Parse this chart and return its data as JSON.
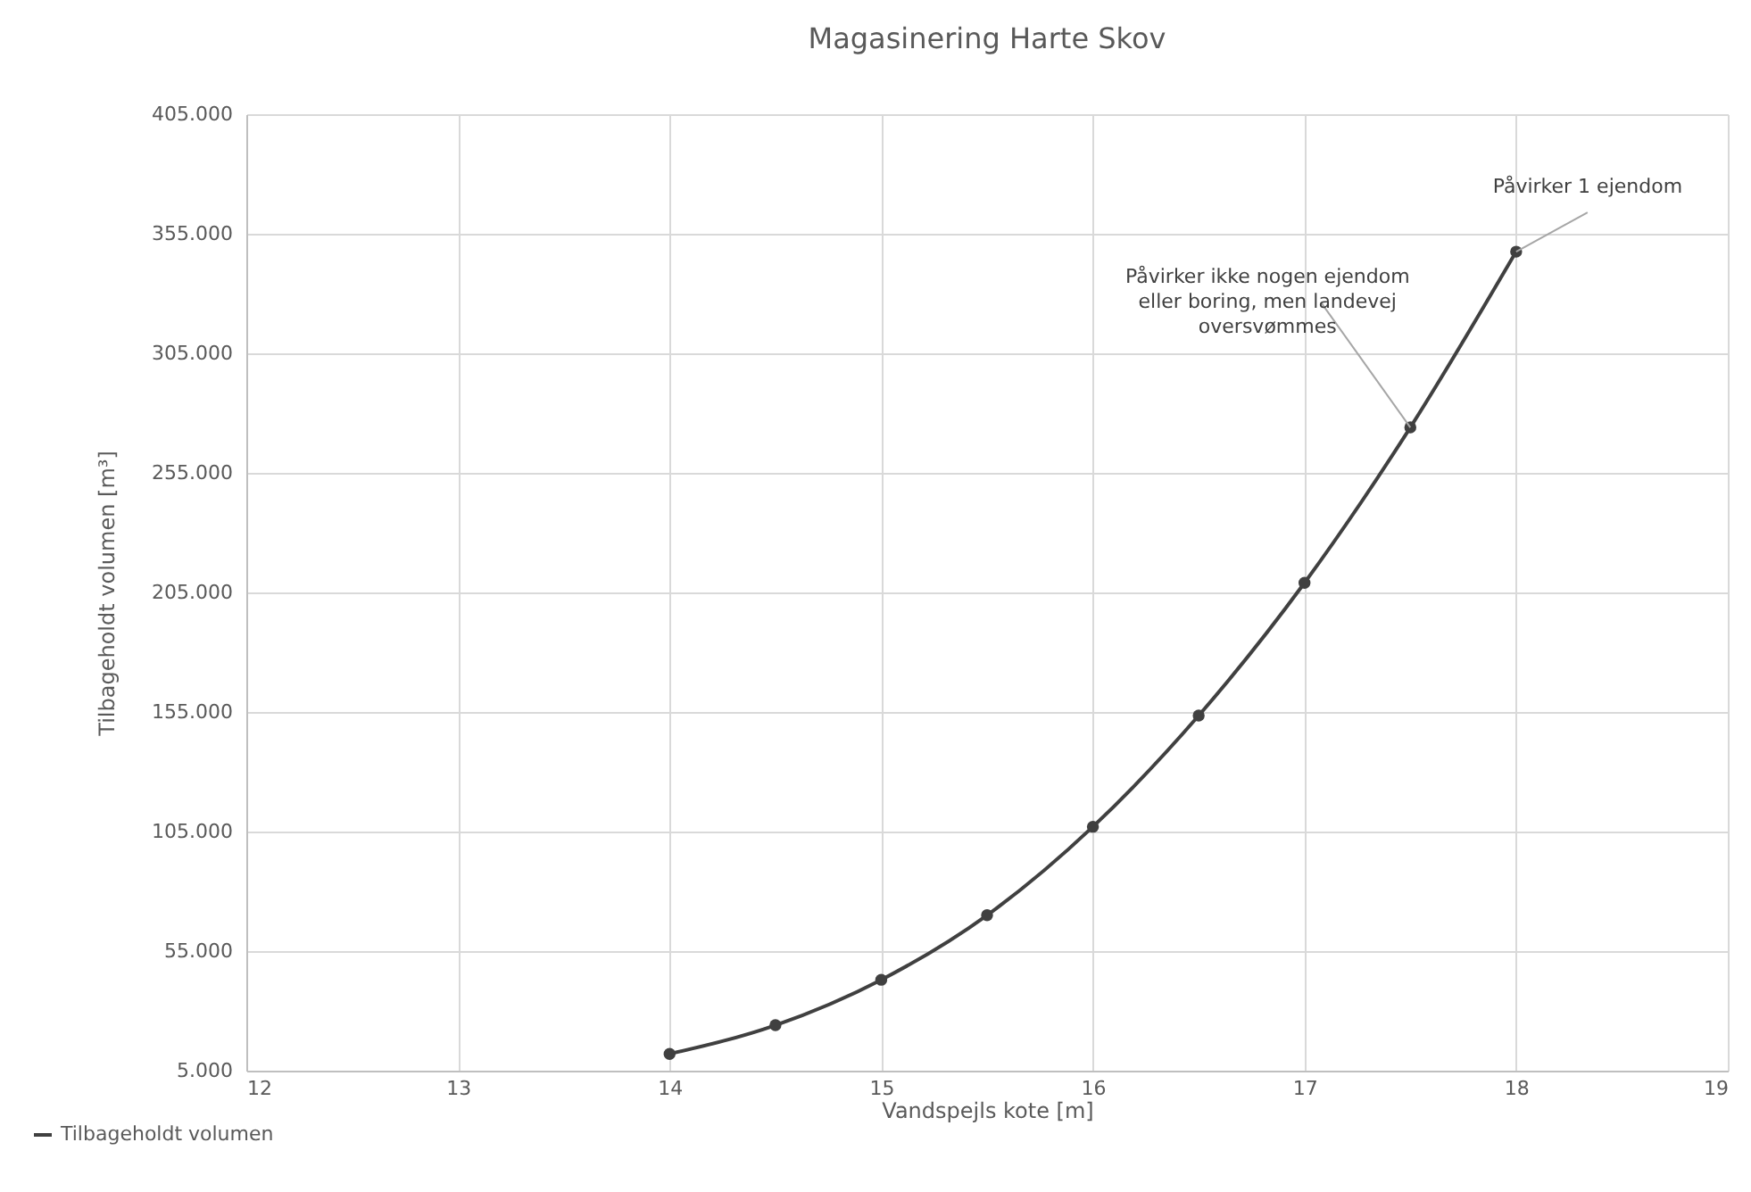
{
  "chart_data": {
    "type": "line",
    "title": "Magasinering Harte Skov",
    "xlabel": "Vandspejls kote [m]",
    "ylabel": "Tilbageholdt volumen [m³]",
    "x": [
      14,
      14.5,
      15,
      15.5,
      16,
      16.5,
      17,
      17.5,
      18
    ],
    "series": [
      {
        "name": "Tilbageholdt volumen",
        "color": "#404040",
        "values": [
          12000,
          24000,
          43000,
          70000,
          107000,
          153500,
          209000,
          274000,
          347500
        ]
      }
    ],
    "xlim": [
      12,
      19
    ],
    "xticks": [
      12,
      13,
      14,
      15,
      16,
      17,
      18,
      19
    ],
    "ylim": [
      5000,
      405000
    ],
    "yticks": [
      {
        "value": 5000,
        "label": "5.000"
      },
      {
        "value": 55000,
        "label": "55.000"
      },
      {
        "value": 105000,
        "label": "105.000"
      },
      {
        "value": 155000,
        "label": "155.000"
      },
      {
        "value": 205000,
        "label": "205.000"
      },
      {
        "value": 255000,
        "label": "255.000"
      },
      {
        "value": 305000,
        "label": "305.000"
      },
      {
        "value": 355000,
        "label": "355.000"
      },
      {
        "value": 405000,
        "label": "405.000"
      }
    ],
    "annotations": [
      {
        "text": "Påvirker ikke nogen ejendom eller boring, men landevej oversvømmes",
        "x": 17.5,
        "y": 274000
      },
      {
        "text": "Påvirker 1 ejendom",
        "x": 18,
        "y": 347500
      }
    ],
    "grid": true,
    "legend": "bottom left",
    "marker": "circle",
    "line_style": "solid"
  }
}
